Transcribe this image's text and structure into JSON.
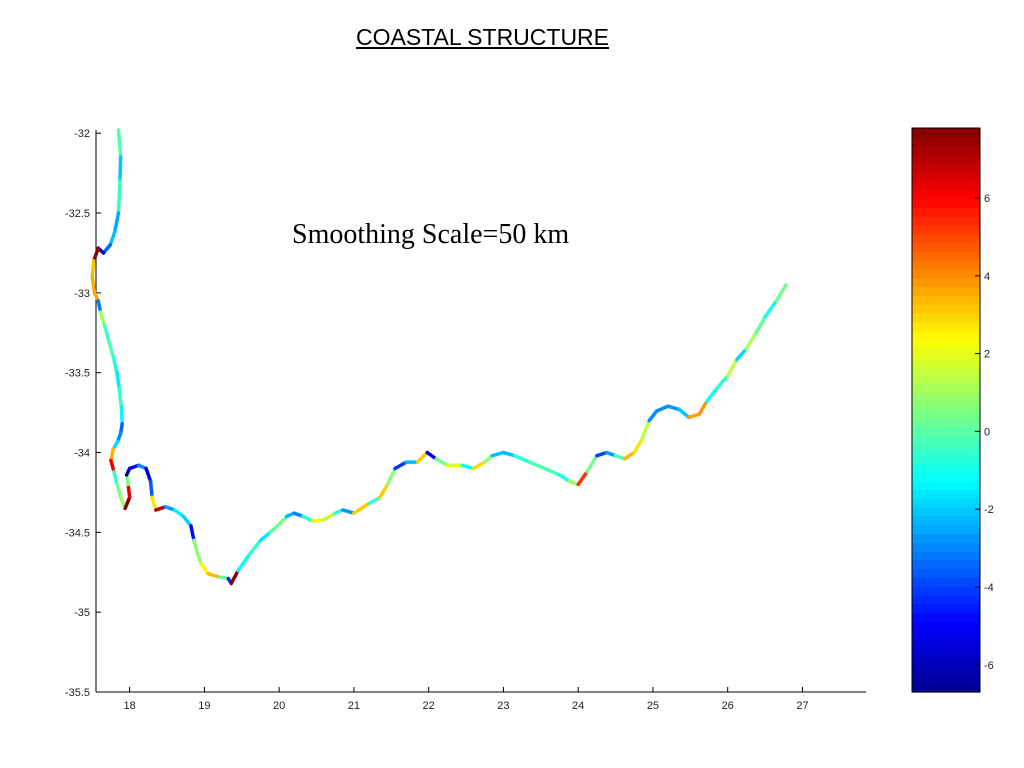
{
  "title": "COASTAL STRUCTURE",
  "chart_data": {
    "type": "scatter",
    "title": "COASTAL STRUCTURE",
    "annotation": "Smoothing Scale=50 km",
    "xlabel": "",
    "ylabel": "",
    "xlim": [
      17.55,
      27.85
    ],
    "ylim": [
      -35.5,
      -31.98
    ],
    "xticks": [
      18,
      19,
      20,
      21,
      22,
      23,
      24,
      25,
      26,
      27
    ],
    "yticks": [
      -32,
      -32.5,
      -33,
      -33.5,
      -34,
      -34.5,
      -35,
      -35.5
    ],
    "grid": false,
    "colorbar": {
      "colormap": "jet",
      "range": [
        -6.7,
        7.8
      ],
      "ticks": [
        6,
        4,
        2,
        0,
        -2,
        -4,
        -6
      ],
      "colors": [
        "#00008f",
        "#0000ff",
        "#0080ff",
        "#00ffff",
        "#80ff80",
        "#ffff00",
        "#ff8000",
        "#ff0000",
        "#800000"
      ]
    },
    "coastline": [
      [
        17.85,
        -31.98
      ],
      [
        17.88,
        -32.15
      ],
      [
        17.87,
        -32.3
      ],
      [
        17.85,
        -32.5
      ],
      [
        17.8,
        -32.62
      ],
      [
        17.74,
        -32.7
      ],
      [
        17.65,
        -32.75
      ],
      [
        17.58,
        -32.72
      ],
      [
        17.52,
        -32.8
      ],
      [
        17.5,
        -32.9
      ],
      [
        17.53,
        -33.0
      ],
      [
        17.58,
        -33.05
      ],
      [
        17.61,
        -33.12
      ],
      [
        17.66,
        -33.2
      ],
      [
        17.72,
        -33.3
      ],
      [
        17.78,
        -33.4
      ],
      [
        17.83,
        -33.5
      ],
      [
        17.86,
        -33.6
      ],
      [
        17.89,
        -33.72
      ],
      [
        17.9,
        -33.82
      ],
      [
        17.88,
        -33.88
      ],
      [
        17.84,
        -33.93
      ],
      [
        17.78,
        -33.98
      ],
      [
        17.75,
        -34.05
      ],
      [
        17.79,
        -34.12
      ],
      [
        17.83,
        -34.2
      ],
      [
        17.88,
        -34.28
      ],
      [
        17.94,
        -34.35
      ],
      [
        18.0,
        -34.28
      ],
      [
        17.98,
        -34.2
      ],
      [
        17.96,
        -34.14
      ],
      [
        18.0,
        -34.1
      ],
      [
        18.12,
        -34.08
      ],
      [
        18.22,
        -34.1
      ],
      [
        18.28,
        -34.18
      ],
      [
        18.3,
        -34.28
      ],
      [
        18.35,
        -34.36
      ],
      [
        18.48,
        -34.34
      ],
      [
        18.6,
        -34.36
      ],
      [
        18.72,
        -34.4
      ],
      [
        18.82,
        -34.46
      ],
      [
        18.86,
        -34.55
      ],
      [
        18.9,
        -34.62
      ],
      [
        18.96,
        -34.7
      ],
      [
        19.05,
        -34.76
      ],
      [
        19.2,
        -34.78
      ],
      [
        19.32,
        -34.79
      ],
      [
        19.36,
        -34.82
      ],
      [
        19.45,
        -34.74
      ],
      [
        19.6,
        -34.64
      ],
      [
        19.75,
        -34.55
      ],
      [
        19.88,
        -34.5
      ],
      [
        20.0,
        -34.45
      ],
      [
        20.1,
        -34.4
      ],
      [
        20.2,
        -34.38
      ],
      [
        20.32,
        -34.4
      ],
      [
        20.45,
        -34.43
      ],
      [
        20.6,
        -34.42
      ],
      [
        20.75,
        -34.38
      ],
      [
        20.85,
        -34.36
      ],
      [
        21.0,
        -34.38
      ],
      [
        21.2,
        -34.32
      ],
      [
        21.35,
        -34.28
      ],
      [
        21.45,
        -34.2
      ],
      [
        21.55,
        -34.1
      ],
      [
        21.7,
        -34.06
      ],
      [
        21.85,
        -34.06
      ],
      [
        21.98,
        -34.0
      ],
      [
        22.1,
        -34.04
      ],
      [
        22.25,
        -34.08
      ],
      [
        22.45,
        -34.08
      ],
      [
        22.6,
        -34.1
      ],
      [
        22.75,
        -34.06
      ],
      [
        22.85,
        -34.02
      ],
      [
        23.0,
        -34.0
      ],
      [
        23.15,
        -34.02
      ],
      [
        23.35,
        -34.06
      ],
      [
        23.55,
        -34.1
      ],
      [
        23.75,
        -34.14
      ],
      [
        23.88,
        -34.18
      ],
      [
        24.0,
        -34.2
      ],
      [
        24.12,
        -34.12
      ],
      [
        24.25,
        -34.02
      ],
      [
        24.38,
        -34.0
      ],
      [
        24.5,
        -34.02
      ],
      [
        24.62,
        -34.04
      ],
      [
        24.75,
        -34.0
      ],
      [
        24.85,
        -33.92
      ],
      [
        24.95,
        -33.8
      ],
      [
        25.05,
        -33.74
      ],
      [
        25.2,
        -33.71
      ],
      [
        25.35,
        -33.73
      ],
      [
        25.48,
        -33.78
      ],
      [
        25.62,
        -33.76
      ],
      [
        25.72,
        -33.68
      ],
      [
        25.85,
        -33.6
      ],
      [
        26.0,
        -33.52
      ],
      [
        26.12,
        -33.42
      ],
      [
        26.25,
        -33.35
      ],
      [
        26.38,
        -33.25
      ],
      [
        26.5,
        -33.15
      ],
      [
        26.65,
        -33.05
      ],
      [
        26.78,
        -32.95
      ]
    ]
  }
}
